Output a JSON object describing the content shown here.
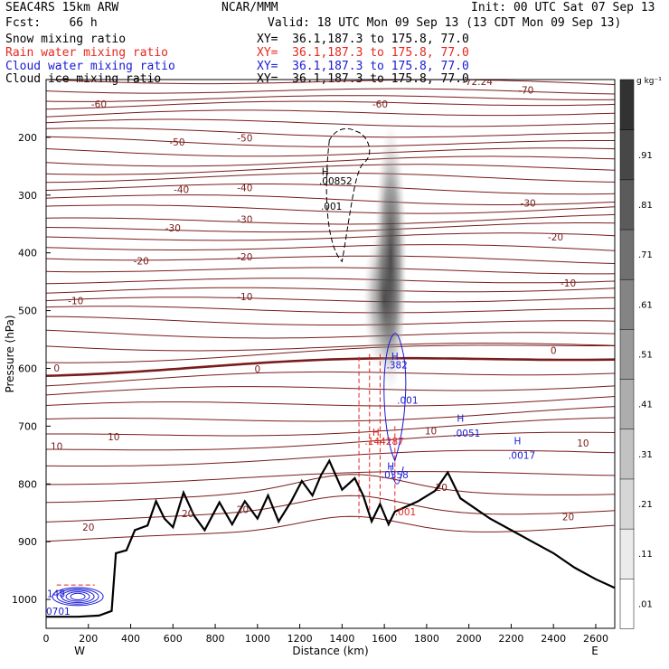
{
  "header": {
    "model": "SEAC4RS 15km ARW",
    "org": "NCAR/MMM",
    "init": "Init: 00 UTC Sat 07 Sep 13",
    "fcst": "Fcst:    66 h",
    "valid": "Valid: 18 UTC Mon 09 Sep 13 (13 CDT Mon 09 Sep 13)",
    "fields": [
      {
        "name": "Snow mixing ratio",
        "xy": "XY=  36.1,187.3 to 175.8, 77.0",
        "color": "#000000"
      },
      {
        "name": "Rain water mixing ratio",
        "xy": "XY=  36.1,187.3 to 175.8, 77.0",
        "color": "#e8261e"
      },
      {
        "name": "Cloud water mixing ratio",
        "xy": "XY=  36.1,187.3 to 175.8, 77.0",
        "color": "#1a1ad6"
      },
      {
        "name": "Cloud ice mixing ratio",
        "xy": "XY=  36.1,187.3 to 175.8, 77.0",
        "color": "#000000"
      }
    ]
  },
  "chart_data": {
    "type": "heatmap",
    "xlabel": "Distance (km)",
    "ylabel": "Pressure (hPa)",
    "x_ticks": [
      0,
      200,
      400,
      600,
      800,
      1000,
      1200,
      1400,
      1600,
      1800,
      2000,
      2200,
      2400,
      2600
    ],
    "y_ticks": [
      200,
      300,
      400,
      500,
      600,
      700,
      800,
      900,
      1000
    ],
    "xlim": [
      0,
      2690
    ],
    "ylim": [
      1050,
      100
    ],
    "x_end_labels": {
      "left": "W",
      "right": "E"
    },
    "colorbar": {
      "unit": "g kg⁻¹",
      "tick_labels": [
        ".01",
        ".11",
        ".21",
        ".31",
        ".41",
        ".51",
        ".61",
        ".71",
        ".81",
        ".91"
      ]
    },
    "temperature_labels": [
      {
        "text": "-72.24",
        "x": 2040,
        "p": 103
      },
      {
        "text": "-70",
        "x": 2270,
        "p": 118
      },
      {
        "text": "-60",
        "x": 250,
        "p": 142
      },
      {
        "text": "-60",
        "x": 1580,
        "p": 142
      },
      {
        "text": "-50",
        "x": 620,
        "p": 208
      },
      {
        "text": "-50",
        "x": 940,
        "p": 201
      },
      {
        "text": "-40",
        "x": 640,
        "p": 290
      },
      {
        "text": "-40",
        "x": 940,
        "p": 287
      },
      {
        "text": "-30",
        "x": 600,
        "p": 357
      },
      {
        "text": "-30",
        "x": 940,
        "p": 342
      },
      {
        "text": "-30",
        "x": 2280,
        "p": 314
      },
      {
        "text": "-20",
        "x": 450,
        "p": 414
      },
      {
        "text": "-20",
        "x": 940,
        "p": 407
      },
      {
        "text": "-20",
        "x": 2410,
        "p": 372
      },
      {
        "text": "-10",
        "x": 140,
        "p": 483
      },
      {
        "text": "-10",
        "x": 940,
        "p": 476
      },
      {
        "text": "-10",
        "x": 2470,
        "p": 452
      },
      {
        "text": "0",
        "x": 50,
        "p": 599
      },
      {
        "text": "0",
        "x": 1000,
        "p": 601
      },
      {
        "text": "0",
        "x": 2400,
        "p": 569
      },
      {
        "text": "10",
        "x": 50,
        "p": 735
      },
      {
        "text": "10",
        "x": 320,
        "p": 718
      },
      {
        "text": "10",
        "x": 1820,
        "p": 708
      },
      {
        "text": "10",
        "x": 2540,
        "p": 729
      },
      {
        "text": "20",
        "x": 200,
        "p": 875
      },
      {
        "text": "20",
        "x": 670,
        "p": 851
      },
      {
        "text": "20",
        "x": 930,
        "p": 844
      },
      {
        "text": "20",
        "x": 1870,
        "p": 806
      },
      {
        "text": "20",
        "x": 2470,
        "p": 857
      }
    ],
    "field_labels": [
      {
        "text": "H",
        "x": 1320,
        "p": 259,
        "color": "#000000"
      },
      {
        "text": ".00852",
        "x": 1370,
        "p": 275,
        "color": "#000000"
      },
      {
        "text": ".001",
        "x": 1350,
        "p": 319,
        "color": "#000000"
      },
      {
        "text": "H",
        "x": 1650,
        "p": 579,
        "color": "#1a1ad6"
      },
      {
        "text": ".382",
        "x": 1660,
        "p": 594,
        "color": "#1a1ad6"
      },
      {
        "text": ".001",
        "x": 1710,
        "p": 655,
        "color": "#1a1ad6"
      },
      {
        "text": "H",
        "x": 1560,
        "p": 710,
        "color": "#e8261e"
      },
      {
        "text": ".144287",
        "x": 1600,
        "p": 726,
        "color": "#e8261e"
      },
      {
        "text": "H",
        "x": 1630,
        "p": 769,
        "color": "#1a1ad6"
      },
      {
        "text": ".0358",
        "x": 1650,
        "p": 784,
        "color": "#1a1ad6"
      },
      {
        "text": ".001",
        "x": 1700,
        "p": 848,
        "color": "#e8261e"
      },
      {
        "text": "H",
        "x": 1960,
        "p": 686,
        "color": "#1a1ad6"
      },
      {
        "text": ".0051",
        "x": 1990,
        "p": 712,
        "color": "#1a1ad6"
      },
      {
        "text": "H",
        "x": 2230,
        "p": 725,
        "color": "#1a1ad6"
      },
      {
        "text": ".0017",
        "x": 2250,
        "p": 750,
        "color": "#1a1ad6"
      },
      {
        "text": ".148",
        "x": 40,
        "p": 990,
        "color": "#1a1ad6"
      },
      {
        "text": ".0701",
        "x": 50,
        "p": 1020,
        "color": "#1a1ad6"
      }
    ],
    "colors": {
      "isotherm": "#7a1c1c",
      "freezing_level": "#7a1c1c",
      "terrain": "#000000",
      "cloud_water": "#1a1ad6",
      "rain": "#e8261e"
    }
  }
}
